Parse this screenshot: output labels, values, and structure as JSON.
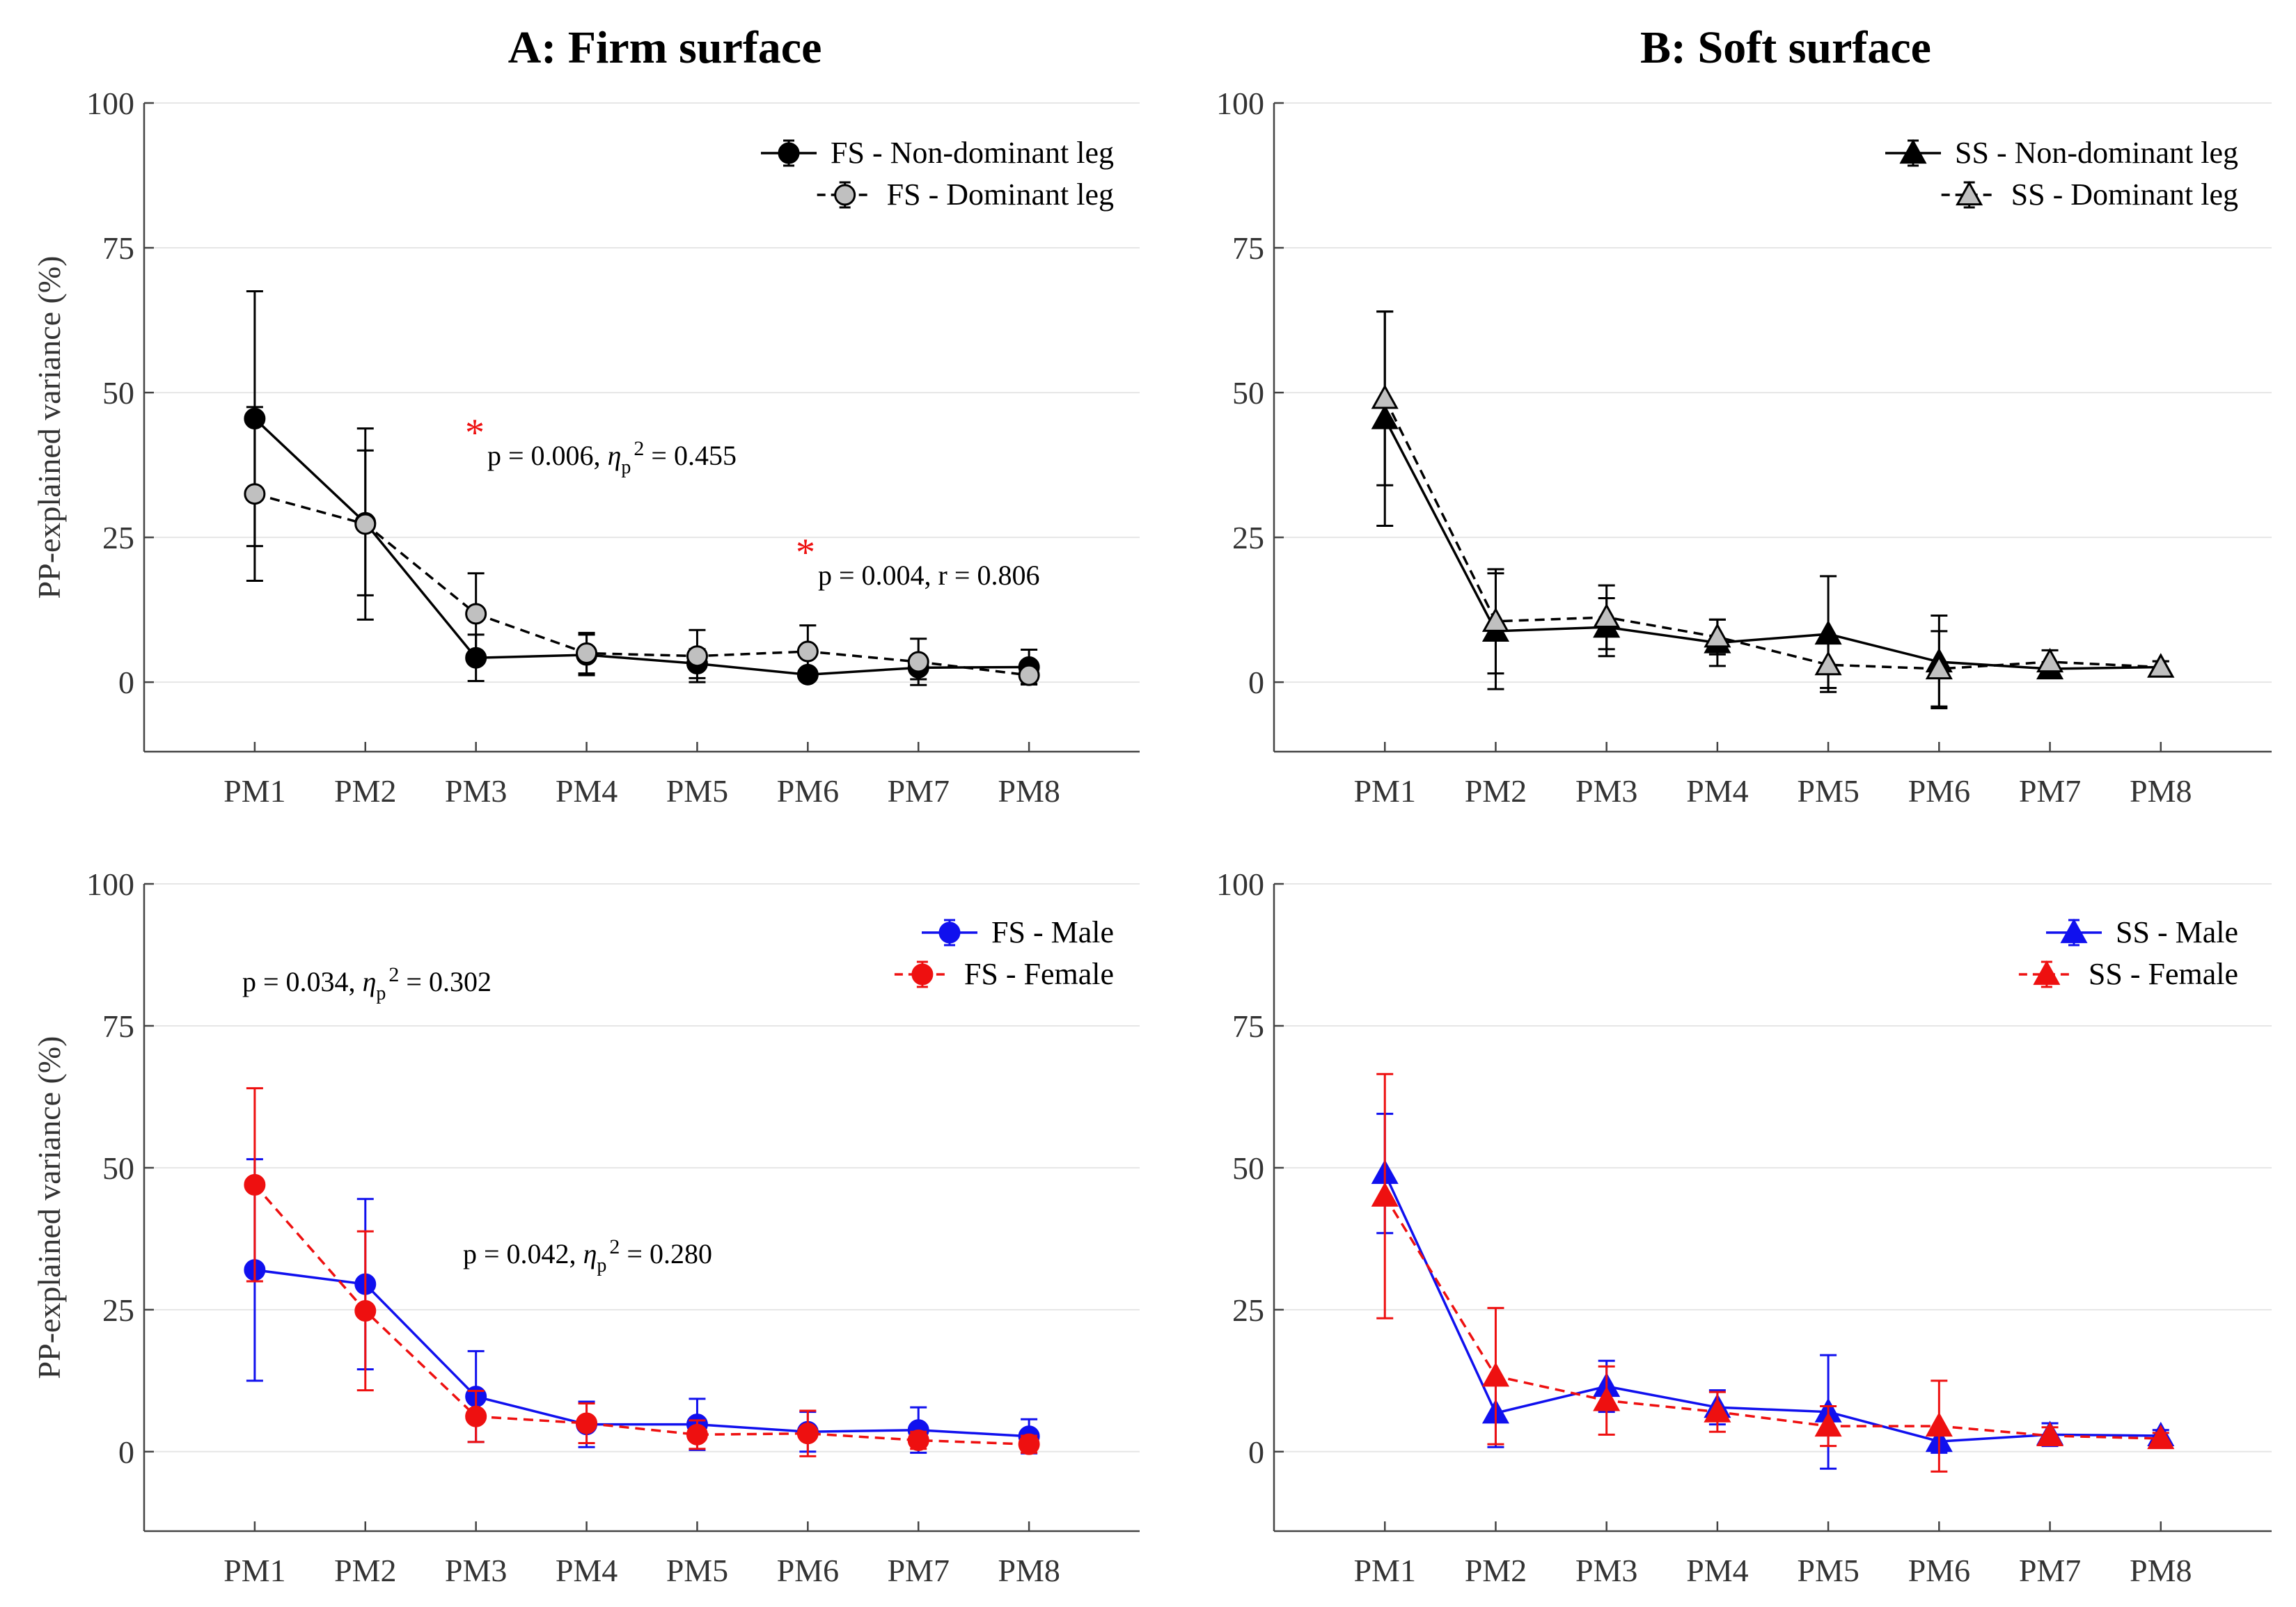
{
  "chart_data": [
    {
      "id": "A-top",
      "type": "line",
      "title": "A: Firm surface",
      "ylabel": "PP-explained variance (%)",
      "xlabel": "",
      "categories": [
        "PM1",
        "PM2",
        "PM3",
        "PM4",
        "PM5",
        "PM6",
        "PM7",
        "PM8"
      ],
      "ylim": [
        -12,
        100
      ],
      "yticks": [
        0,
        25,
        50,
        75,
        100
      ],
      "grid": true,
      "legend": "top-right",
      "series": [
        {
          "name": "FS - Non-dominant leg",
          "values": [
            45.5,
            27.5,
            4.2,
            4.7,
            3.2,
            1.3,
            2.5,
            2.6
          ],
          "err": [
            22,
            12.5,
            4,
            3.5,
            2.5,
            1,
            2,
            3
          ],
          "color": "#000000",
          "marker_fill": "#000000",
          "marker": "circle",
          "dash": false
        },
        {
          "name": "FS - Dominant leg",
          "values": [
            32.5,
            27.3,
            11.8,
            5.0,
            4.5,
            5.3,
            3.5,
            1.2
          ],
          "err": [
            15,
            16.5,
            7,
            3.5,
            4.5,
            4.5,
            4,
            1.5
          ],
          "color": "#000000",
          "marker_fill": "#c0c0c0",
          "marker": "circle",
          "dash": true
        }
      ],
      "annotations": [
        {
          "text": "p = 0.006, ηp² = 0.455",
          "star": "*",
          "anchor": "PM3"
        },
        {
          "text": "p = 0.004, r = 0.806",
          "star": "*",
          "anchor": "PM6"
        }
      ]
    },
    {
      "id": "B-top",
      "type": "line",
      "title": "B: Soft surface",
      "ylabel": "",
      "xlabel": "",
      "categories": [
        "PM1",
        "PM2",
        "PM3",
        "PM4",
        "PM5",
        "PM6",
        "PM7",
        "PM8"
      ],
      "ylim": [
        -12,
        100
      ],
      "yticks": [
        0,
        25,
        50,
        75,
        100
      ],
      "grid": true,
      "legend": "top-right",
      "series": [
        {
          "name": "SS - Non-dominant leg",
          "values": [
            45.5,
            8.8,
            9.5,
            6.8,
            8.3,
            3.5,
            2.3,
            2.6
          ],
          "err": [
            18.5,
            10,
            5,
            4,
            10,
            8,
            1,
            1
          ],
          "color": "#000000",
          "marker_fill": "#000000",
          "marker": "triangle",
          "dash": false
        },
        {
          "name": "SS - Dominant leg",
          "values": [
            49.0,
            10.5,
            11.2,
            7.8,
            3.0,
            2.3,
            3.5,
            2.6
          ],
          "err": [
            15,
            9,
            5.5,
            3,
            4,
            6.5,
            2,
            1
          ],
          "color": "#000000",
          "marker_fill": "#c0c0c0",
          "marker": "triangle",
          "dash": true
        }
      ],
      "annotations": []
    },
    {
      "id": "A-bottom",
      "type": "line",
      "title": "",
      "ylabel": "PP-explained variance (%)",
      "xlabel": "",
      "categories": [
        "PM1",
        "PM2",
        "PM3",
        "PM4",
        "PM5",
        "PM6",
        "PM7",
        "PM8"
      ],
      "ylim": [
        -14,
        100
      ],
      "yticks": [
        0,
        25,
        50,
        75,
        100
      ],
      "grid": true,
      "legend": "top-right",
      "series": [
        {
          "name": "FS - Male",
          "values": [
            32.0,
            29.5,
            9.7,
            4.8,
            4.8,
            3.5,
            3.8,
            2.7
          ],
          "err": [
            19.5,
            15,
            8,
            4,
            4.5,
            3.5,
            4,
            3
          ],
          "color": "#1010ee",
          "marker_fill": "#1010ee",
          "marker": "circle",
          "dash": false
        },
        {
          "name": "FS - Female",
          "values": [
            47.0,
            24.8,
            6.2,
            5.0,
            3.0,
            3.2,
            2.0,
            1.3
          ],
          "err": [
            17,
            14,
            4.5,
            3.5,
            2.5,
            4,
            1.5,
            1.5
          ],
          "color": "#ee1010",
          "marker_fill": "#ee1010",
          "marker": "circle",
          "dash": true
        }
      ],
      "annotations": [
        {
          "text": "p = 0.034, ηp² = 0.302",
          "star": "",
          "anchor": "PM1"
        },
        {
          "text": "p = 0.042, ηp² = 0.280",
          "star": "",
          "anchor": "PM3"
        }
      ]
    },
    {
      "id": "B-bottom",
      "type": "line",
      "title": "",
      "ylabel": "",
      "xlabel": "",
      "categories": [
        "PM1",
        "PM2",
        "PM3",
        "PM4",
        "PM5",
        "PM6",
        "PM7",
        "PM8"
      ],
      "ylim": [
        -14,
        100
      ],
      "yticks": [
        0,
        25,
        50,
        75,
        100
      ],
      "grid": true,
      "legend": "top-right",
      "series": [
        {
          "name": "SS - Male",
          "values": [
            49.0,
            6.8,
            11.5,
            7.8,
            7.0,
            1.8,
            3.0,
            2.8
          ],
          "err": [
            10.5,
            6,
            4.5,
            3,
            10,
            2,
            2,
            1
          ],
          "color": "#1010ee",
          "marker_fill": "#1010ee",
          "marker": "triangle",
          "dash": false
        },
        {
          "name": "SS - Female",
          "values": [
            45.0,
            13.3,
            9.0,
            7.0,
            4.5,
            4.5,
            2.8,
            2.3
          ],
          "err": [
            21.5,
            12,
            6,
            3.5,
            3.5,
            8,
            1.5,
            1
          ],
          "color": "#ee1010",
          "marker_fill": "#ee1010",
          "marker": "triangle",
          "dash": true
        }
      ],
      "annotations": []
    }
  ]
}
